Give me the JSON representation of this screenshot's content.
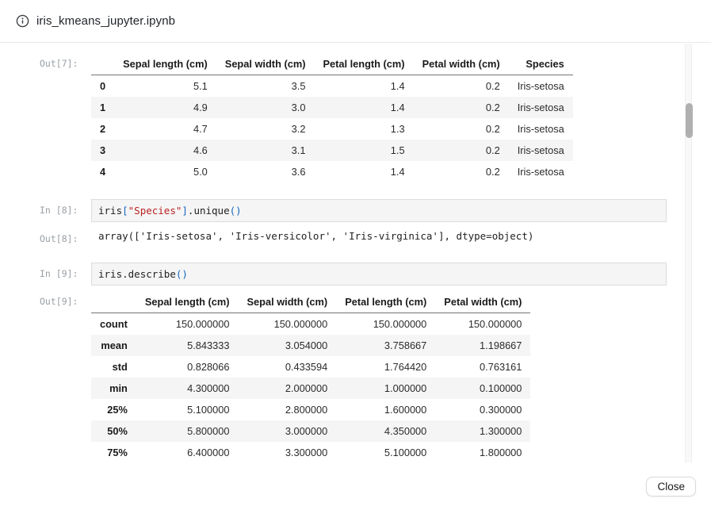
{
  "dialog": {
    "title": "iris_kmeans_jupyter.ipynb",
    "close_label": "Close",
    "header_icon": "info-icon"
  },
  "colors": {
    "plain": "#212121",
    "string": "#ba2121",
    "bracket": "#1565c0",
    "stripe": "#f5f5f5",
    "prompt": "#9aa0a6",
    "codecell_bg": "#f5f5f5",
    "codecell_border": "#dcdcdc"
  },
  "cells": {
    "out7": {
      "prompt": "Out[7]:",
      "table": {
        "columns": [
          "",
          "Sepal length (cm)",
          "Sepal width (cm)",
          "Petal length (cm)",
          "Petal width (cm)",
          "Species"
        ],
        "rows": [
          [
            "0",
            "5.1",
            "3.5",
            "1.4",
            "0.2",
            "Iris-setosa"
          ],
          [
            "1",
            "4.9",
            "3.0",
            "1.4",
            "0.2",
            "Iris-setosa"
          ],
          [
            "2",
            "4.7",
            "3.2",
            "1.3",
            "0.2",
            "Iris-setosa"
          ],
          [
            "3",
            "4.6",
            "3.1",
            "1.5",
            "0.2",
            "Iris-setosa"
          ],
          [
            "4",
            "5.0",
            "3.6",
            "1.4",
            "0.2",
            "Iris-setosa"
          ]
        ]
      }
    },
    "in8": {
      "prompt": "In [8]:",
      "code": [
        [
          "iris",
          "plain"
        ],
        [
          "[",
          "bracket"
        ],
        [
          "\"Species\"",
          "string"
        ],
        [
          "]",
          "bracket"
        ],
        [
          ".",
          "plain"
        ],
        [
          "unique",
          "plain"
        ],
        [
          "(",
          "bracket"
        ],
        [
          ")",
          "bracket"
        ]
      ]
    },
    "out8": {
      "prompt": "Out[8]:",
      "text": "array(['Iris-setosa', 'Iris-versicolor', 'Iris-virginica'], dtype=object)"
    },
    "in9": {
      "prompt": "In [9]:",
      "code": [
        [
          "iris",
          "plain"
        ],
        [
          ".",
          "plain"
        ],
        [
          "describe",
          "plain"
        ],
        [
          "(",
          "bracket"
        ],
        [
          ")",
          "bracket"
        ]
      ]
    },
    "out9": {
      "prompt": "Out[9]:",
      "table": {
        "columns": [
          "",
          "Sepal length (cm)",
          "Sepal width (cm)",
          "Petal length (cm)",
          "Petal width (cm)"
        ],
        "rows": [
          [
            "count",
            "150.000000",
            "150.000000",
            "150.000000",
            "150.000000"
          ],
          [
            "mean",
            "5.843333",
            "3.054000",
            "3.758667",
            "1.198667"
          ],
          [
            "std",
            "0.828066",
            "0.433594",
            "1.764420",
            "0.763161"
          ],
          [
            "min",
            "4.300000",
            "2.000000",
            "1.000000",
            "0.100000"
          ],
          [
            "25%",
            "5.100000",
            "2.800000",
            "1.600000",
            "0.300000"
          ],
          [
            "50%",
            "5.800000",
            "3.000000",
            "4.350000",
            "1.300000"
          ],
          [
            "75%",
            "6.400000",
            "3.300000",
            "5.100000",
            "1.800000"
          ]
        ]
      }
    }
  }
}
